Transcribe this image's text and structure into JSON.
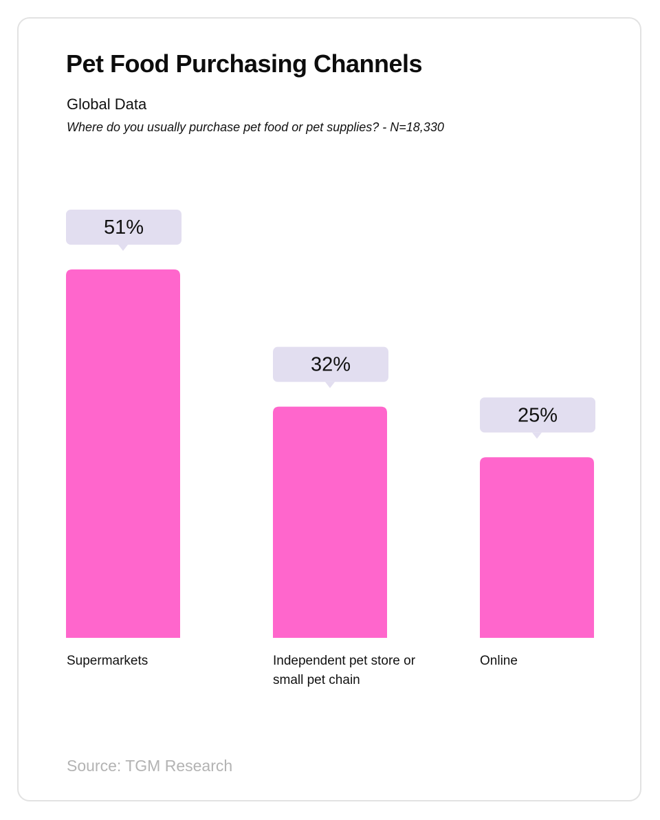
{
  "header": {
    "title": "Pet Food Purchasing Channels",
    "subtitle": "Global Data",
    "question": "Where do you usually purchase pet food or pet supplies? - N=18,330"
  },
  "footer": {
    "source": "Source: TGM Research"
  },
  "colors": {
    "bar": "#ff66cc",
    "callout": "#e2def0",
    "border": "#e2e2e2",
    "source_text": "#b3b3b3"
  },
  "chart_data": {
    "type": "bar",
    "title": "Pet Food Purchasing Channels",
    "subtitle": "Global Data",
    "categories": [
      "Supermarkets",
      "Independent pet store or small pet chain",
      "Online"
    ],
    "values": [
      51,
      32,
      25
    ],
    "value_labels": [
      "51%",
      "32%",
      "25%"
    ],
    "unit": "%",
    "xlabel": "",
    "ylabel": "",
    "ylim": [
      0,
      51
    ],
    "grid": false,
    "legend": "none"
  }
}
